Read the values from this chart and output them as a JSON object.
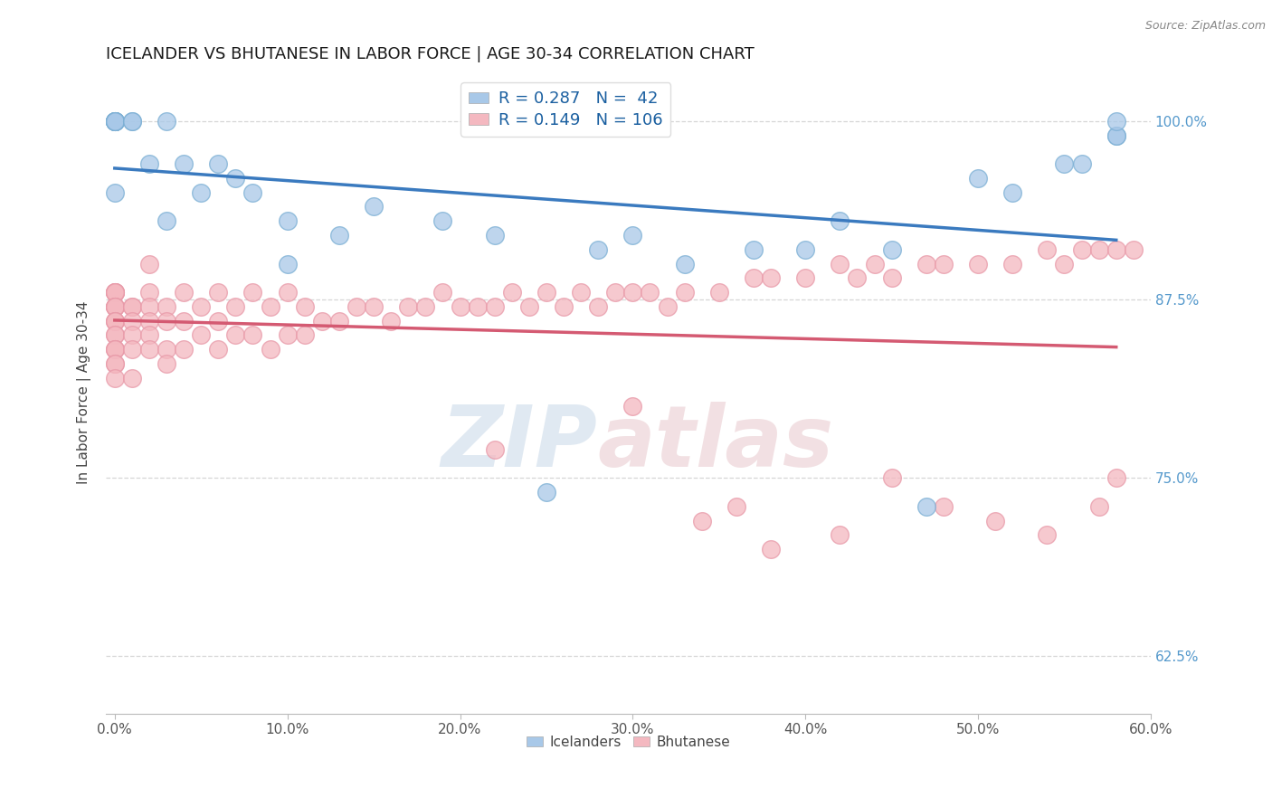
{
  "title": "ICELANDER VS BHUTANESE IN LABOR FORCE | AGE 30-34 CORRELATION CHART",
  "source_text": "Source: ZipAtlas.com",
  "ylabel": "In Labor Force | Age 30-34",
  "xlim": [
    -0.005,
    0.6
  ],
  "ylim": [
    0.585,
    1.035
  ],
  "xtick_vals": [
    0.0,
    0.1,
    0.2,
    0.3,
    0.4,
    0.5,
    0.6
  ],
  "xtick_labels": [
    "0.0%",
    "10.0%",
    "20.0%",
    "30.0%",
    "40.0%",
    "50.0%",
    "60.0%"
  ],
  "ytick_vals": [
    0.625,
    0.75,
    0.875,
    1.0
  ],
  "ytick_labels": [
    "62.5%",
    "75.0%",
    "87.5%",
    "100.0%"
  ],
  "blue_R": 0.287,
  "blue_N": 42,
  "pink_R": 0.149,
  "pink_N": 106,
  "blue_scatter_color": "#a8c8e8",
  "blue_scatter_edge": "#7bafd4",
  "pink_scatter_color": "#f4b8c0",
  "pink_scatter_edge": "#e899a8",
  "blue_line_color": "#3a7abf",
  "pink_line_color": "#d45a72",
  "blue_legend_color": "#a8c8e8",
  "pink_legend_color": "#f4b8c0",
  "watermark_color": "#c8d8e8",
  "watermark_pink": "#e8c8cc",
  "grid_color": "#cccccc",
  "title_color": "#1a1a1a",
  "right_tick_color": "#5599cc",
  "ice_x": [
    0.0,
    0.0,
    0.0,
    0.0,
    0.0,
    0.0,
    0.0,
    0.0,
    0.0,
    0.0,
    0.01,
    0.01,
    0.02,
    0.03,
    0.03,
    0.04,
    0.05,
    0.06,
    0.07,
    0.08,
    0.1,
    0.1,
    0.13,
    0.15,
    0.19,
    0.22,
    0.25,
    0.28,
    0.3,
    0.33,
    0.37,
    0.4,
    0.42,
    0.45,
    0.47,
    0.5,
    0.52,
    0.55,
    0.56,
    0.58,
    0.58,
    0.58
  ],
  "ice_y": [
    1.0,
    1.0,
    1.0,
    1.0,
    1.0,
    1.0,
    1.0,
    1.0,
    1.0,
    0.95,
    1.0,
    1.0,
    0.97,
    1.0,
    0.93,
    0.97,
    0.95,
    0.97,
    0.96,
    0.95,
    0.93,
    0.9,
    0.92,
    0.94,
    0.93,
    0.92,
    0.74,
    0.91,
    0.92,
    0.9,
    0.91,
    0.91,
    0.93,
    0.91,
    0.73,
    0.96,
    0.95,
    0.97,
    0.97,
    0.99,
    0.99,
    1.0
  ],
  "bhu_x": [
    0.0,
    0.0,
    0.0,
    0.0,
    0.0,
    0.0,
    0.0,
    0.0,
    0.0,
    0.0,
    0.0,
    0.0,
    0.0,
    0.0,
    0.0,
    0.0,
    0.0,
    0.0,
    0.0,
    0.0,
    0.01,
    0.01,
    0.01,
    0.01,
    0.01,
    0.01,
    0.02,
    0.02,
    0.02,
    0.02,
    0.02,
    0.02,
    0.03,
    0.03,
    0.03,
    0.03,
    0.04,
    0.04,
    0.04,
    0.05,
    0.05,
    0.06,
    0.06,
    0.06,
    0.07,
    0.07,
    0.08,
    0.08,
    0.09,
    0.09,
    0.1,
    0.1,
    0.11,
    0.11,
    0.12,
    0.13,
    0.14,
    0.15,
    0.16,
    0.17,
    0.18,
    0.19,
    0.2,
    0.21,
    0.22,
    0.23,
    0.24,
    0.25,
    0.26,
    0.27,
    0.28,
    0.29,
    0.3,
    0.31,
    0.32,
    0.33,
    0.35,
    0.37,
    0.38,
    0.4,
    0.42,
    0.43,
    0.44,
    0.45,
    0.47,
    0.48,
    0.5,
    0.52,
    0.54,
    0.55,
    0.56,
    0.57,
    0.58,
    0.59,
    0.34,
    0.22,
    0.3,
    0.36,
    0.38,
    0.42,
    0.45,
    0.48,
    0.51,
    0.54,
    0.57,
    0.58
  ],
  "bhu_y": [
    0.88,
    0.88,
    0.88,
    0.88,
    0.88,
    0.87,
    0.87,
    0.87,
    0.87,
    0.86,
    0.86,
    0.86,
    0.85,
    0.85,
    0.84,
    0.84,
    0.84,
    0.83,
    0.83,
    0.82,
    0.87,
    0.87,
    0.86,
    0.85,
    0.84,
    0.82,
    0.9,
    0.88,
    0.87,
    0.86,
    0.85,
    0.84,
    0.87,
    0.86,
    0.84,
    0.83,
    0.88,
    0.86,
    0.84,
    0.87,
    0.85,
    0.88,
    0.86,
    0.84,
    0.87,
    0.85,
    0.88,
    0.85,
    0.87,
    0.84,
    0.88,
    0.85,
    0.87,
    0.85,
    0.86,
    0.86,
    0.87,
    0.87,
    0.86,
    0.87,
    0.87,
    0.88,
    0.87,
    0.87,
    0.87,
    0.88,
    0.87,
    0.88,
    0.87,
    0.88,
    0.87,
    0.88,
    0.88,
    0.88,
    0.87,
    0.88,
    0.88,
    0.89,
    0.89,
    0.89,
    0.9,
    0.89,
    0.9,
    0.89,
    0.9,
    0.9,
    0.9,
    0.9,
    0.91,
    0.9,
    0.91,
    0.91,
    0.91,
    0.91,
    0.72,
    0.77,
    0.8,
    0.73,
    0.7,
    0.71,
    0.75,
    0.73,
    0.72,
    0.71,
    0.73,
    0.75
  ]
}
